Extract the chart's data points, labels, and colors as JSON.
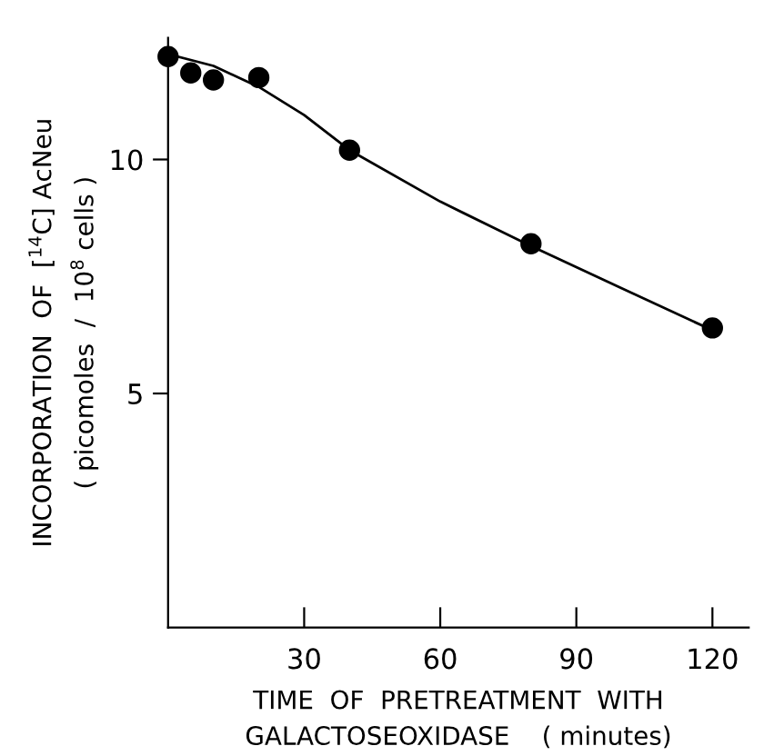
{
  "chart_data": {
    "type": "scatter",
    "xlabel": "TIME  OF  PRETREATMENT  WITH\nGALACTOSEOXIDASE    ( minutes)",
    "ylabel": "INCORPORATION  OF  [$^{14}$C] AcNeu\n( picomoles  /  10$^{8}$ cells )",
    "xlim": [
      0,
      128
    ],
    "xticks": [
      30,
      60,
      90,
      120
    ],
    "ylim": [
      0,
      12.6
    ],
    "yticks": [
      5,
      10
    ],
    "grid": false,
    "legend": false,
    "marker": "circle",
    "series": [
      {
        "color": "#000000",
        "x": [
          0,
          5,
          10,
          20,
          40,
          80,
          120
        ],
        "values": [
          12.2,
          11.85,
          11.7,
          11.75,
          10.2,
          8.2,
          6.4
        ]
      },
      {
        "type": "line",
        "color": "#000000",
        "line_style": "solid",
        "marker": "none",
        "x": [
          0,
          10,
          20,
          30,
          40,
          60,
          80,
          100,
          120
        ],
        "values": [
          12.25,
          12.0,
          11.55,
          10.95,
          10.2,
          9.1,
          8.15,
          7.25,
          6.35
        ]
      }
    ]
  }
}
